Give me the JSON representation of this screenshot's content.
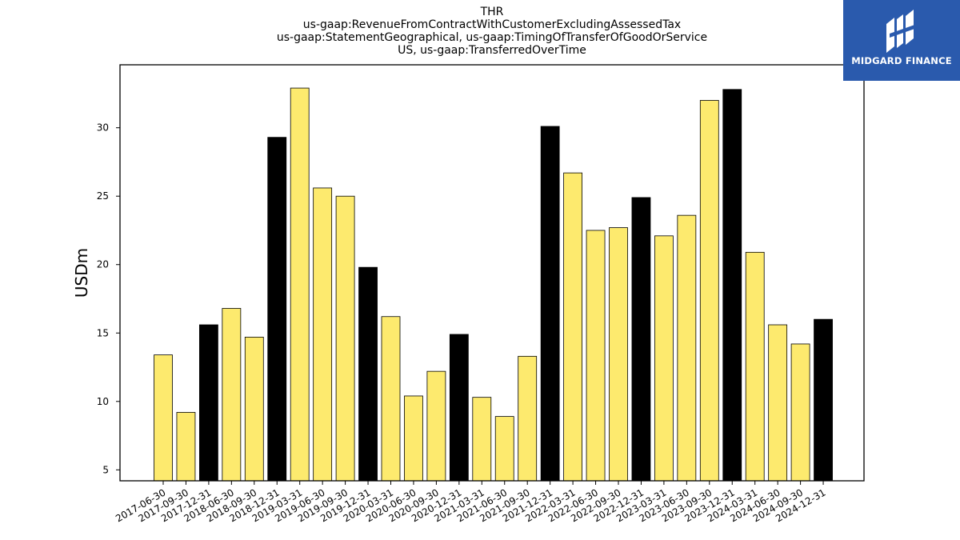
{
  "titles": [
    "THR",
    "us-gaap:RevenueFromContractWithCustomerExcludingAssessedTax",
    "us-gaap:StatementGeographical, us-gaap:TimingOfTransferOfGoodOrService",
    "US, us-gaap:TransferredOverTime"
  ],
  "logo": {
    "text": "MIDGARD FINANCE",
    "background": "#2a5aad",
    "icon": "midgard-logo-icon"
  },
  "chart_data": {
    "type": "bar",
    "title": "THR\nus-gaap:RevenueFromContractWithCustomerExcludingAssessedTax\nus-gaap:StatementGeographical, us-gaap:TimingOfTransferOfGoodOrService\nUS, us-gaap:TransferredOverTime",
    "xlabel": "",
    "ylabel": "USDm",
    "ylim": [
      4.2,
      34.6
    ],
    "yticks": [
      5,
      10,
      15,
      20,
      25,
      30
    ],
    "grid": false,
    "colors": {
      "quarter": "#fdea6e",
      "year_end": "#000000",
      "edge": "#000000"
    },
    "categories": [
      "2017-06-30",
      "2017-09-30",
      "2017-12-31",
      "2018-06-30",
      "2018-09-30",
      "2018-12-31",
      "2019-03-31",
      "2019-06-30",
      "2019-09-30",
      "2019-12-31",
      "2020-03-31",
      "2020-06-30",
      "2020-09-30",
      "2020-12-31",
      "2021-03-31",
      "2021-06-30",
      "2021-09-30",
      "2021-12-31",
      "2022-03-31",
      "2022-06-30",
      "2022-09-30",
      "2022-12-31",
      "2023-03-31",
      "2023-06-30",
      "2023-09-30",
      "2023-12-31",
      "2024-03-31",
      "2024-06-30",
      "2024-09-30",
      "2024-12-31"
    ],
    "values": [
      13.4,
      9.2,
      15.6,
      16.8,
      14.7,
      29.3,
      32.9,
      25.6,
      25.0,
      19.8,
      16.2,
      10.4,
      12.2,
      14.9,
      10.3,
      8.9,
      13.3,
      30.1,
      26.7,
      22.5,
      22.7,
      24.9,
      22.1,
      23.6,
      32.0,
      32.8,
      20.9,
      15.6,
      14.2,
      16.0
    ],
    "highlight": [
      false,
      false,
      true,
      false,
      false,
      true,
      false,
      false,
      false,
      true,
      false,
      false,
      false,
      true,
      false,
      false,
      false,
      true,
      false,
      false,
      false,
      true,
      false,
      false,
      false,
      true,
      false,
      false,
      false,
      true
    ]
  }
}
